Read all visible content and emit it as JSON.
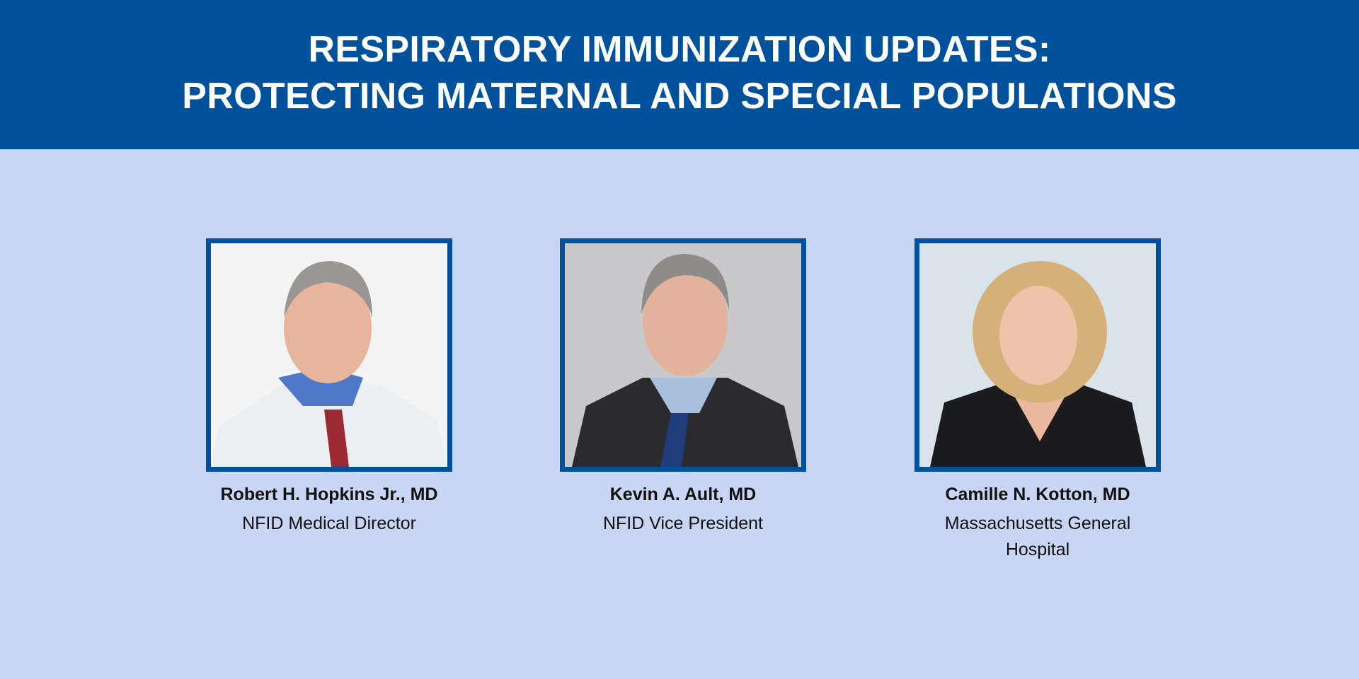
{
  "header": {
    "title_line1": "RESPIRATORY IMMUNIZATION UPDATES:",
    "title_line2": "PROTECTING MATERNAL AND SPECIAL POPULATIONS"
  },
  "colors": {
    "header_bg": "#00519c",
    "page_bg": "#c8d6f3",
    "frame": "#00519c"
  },
  "speakers": [
    {
      "name": "Robert H. Hopkins Jr., MD",
      "role": "NFID Medical Director"
    },
    {
      "name": "Kevin A. Ault, MD",
      "role": "NFID Vice President"
    },
    {
      "name": "Camille N. Kotton, MD",
      "role": "Massachusetts General Hospital"
    }
  ]
}
